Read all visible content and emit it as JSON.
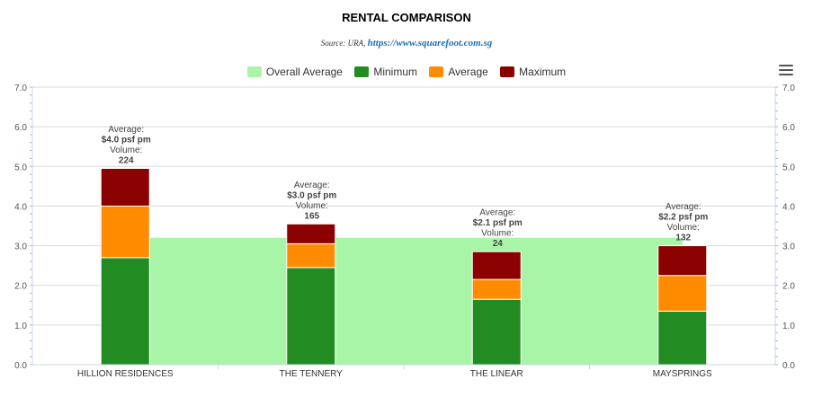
{
  "chart_data": {
    "type": "bar",
    "stacked": true,
    "title": "RENTAL COMPARISON",
    "subtitle_source": "Source: URA,",
    "subtitle_link": "https://www.squarefoot.com.sg",
    "categories": [
      "HILLION RESIDENCES",
      "THE TENNERY",
      "THE LINEAR",
      "MAYSPRINGS"
    ],
    "series": [
      {
        "name": "Minimum",
        "color": "#228b22",
        "values": [
          2.7,
          2.45,
          1.65,
          1.35
        ]
      },
      {
        "name": "Average",
        "color": "#ff8c00",
        "values": [
          1.3,
          0.6,
          0.5,
          0.9
        ]
      },
      {
        "name": "Maximum",
        "color": "#8b0000",
        "values": [
          0.95,
          0.5,
          0.7,
          0.75
        ]
      }
    ],
    "overall_average": {
      "name": "Overall Average",
      "color": "#a8f5a8",
      "value": 3.2
    },
    "data_labels": [
      {
        "avg_label": "Average:",
        "avg_value": "$4.0 psf pm",
        "vol_label": "Volume:",
        "vol_value": "224"
      },
      {
        "avg_label": "Average:",
        "avg_value": "$3.0 psf pm",
        "vol_label": "Volume:",
        "vol_value": "165"
      },
      {
        "avg_label": "Average:",
        "avg_value": "$2.1 psf pm",
        "vol_label": "Volume:",
        "vol_value": "24"
      },
      {
        "avg_label": "Average:",
        "avg_value": "$2.2 psf pm",
        "vol_label": "Volume:",
        "vol_value": "132"
      }
    ],
    "yticks": [
      "0.0",
      "1.0",
      "2.0",
      "3.0",
      "4.0",
      "5.0",
      "6.0",
      "7.0"
    ],
    "ylim": [
      0,
      7
    ],
    "grid": true,
    "legend_position": "top-center",
    "legend": [
      "Overall Average",
      "Minimum",
      "Average",
      "Maximum"
    ]
  },
  "menu_icon": "hamburger-menu-icon"
}
